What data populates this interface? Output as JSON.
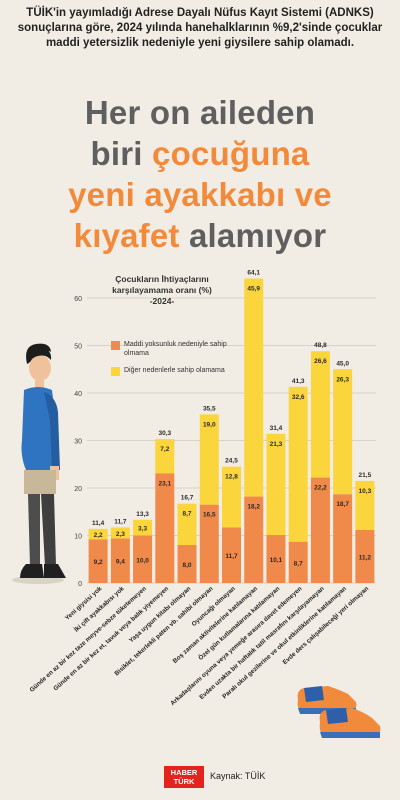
{
  "intro_text": "TÜİK'in yayımladığı Adrese Dayalı Nüfus Kayıt Sistemi (ADNKS) sonuçlarına göre, 2024 yılında hanehalklarının %9,2'sinde çocuklar maddi yetersizlik nedeniyle yeni giysilere sahip olamadı.",
  "headline": {
    "line1": "Her on aileden",
    "line2a": "biri ",
    "line2b": "çocuğuna",
    "line3": "yeni ayakkabı ve",
    "line4a": "kıyafet",
    "line4b": " alamıyor"
  },
  "legend": {
    "title": "Çocukların İhtiyaçlarını karşılayamama oranı (%) -2024-",
    "item1": "Maddi yoksunluk nedeniyle sahip olmama",
    "item2": "Diğer nedenlerle sahip olamama"
  },
  "colors": {
    "maddi": "#f08a4b",
    "diger": "#fbd53c",
    "headline_accent": "#f28a3c",
    "headline_gray": "#5f5f5f",
    "background": "#f1ede4"
  },
  "chart_data": {
    "type": "bar",
    "stacked": true,
    "ylim": [
      0,
      60
    ],
    "yticks": [
      0,
      10,
      20,
      30,
      40,
      50,
      60
    ],
    "grid": true,
    "categories": [
      "Yeni giysisi yok",
      "İki çift ayakkabısı yok",
      "Günde en az bir kez taze meyve-sebze tüketemeyen",
      "Günde en az bir kez et, tavuk veya balık yiyemeyen",
      "Yaşa uygun kitabı olmayan",
      "Bisiklet, tekerlekli paten vb. sahibi olmayan",
      "Oyuncağı olmayan",
      "Boş zaman aktivitelerine katılamayan",
      "Özel gün kutlamalarına katılamayan",
      "Arkadaşlarını oyuna veya yemeğe arasıra davet edemeyen",
      "Evden uzakta bir haftalık tatil masrafını karşılayamayan",
      "Paralı okul gezilerine ve okul etkinliklerine katılamayan",
      "Evde ders çalışabileceği yeri olmayan"
    ],
    "totals": [
      "11,4",
      "11,7",
      "13,3",
      "30,3",
      "16,7",
      "35,5",
      "24,5",
      "64,1",
      "31,4",
      "41,3",
      "48,8",
      "45,0",
      "21,5"
    ],
    "series": [
      {
        "name": "Maddi yoksunluk nedeniyle sahip olmama",
        "values": [
          9.2,
          9.4,
          10.0,
          23.1,
          8.0,
          16.5,
          11.7,
          18.2,
          10.1,
          8.7,
          22.2,
          18.7,
          11.2
        ],
        "labels": [
          "9,2",
          "9,4",
          "10,0",
          "23,1",
          "8,0",
          "16,5",
          "11,7",
          "18,2",
          "10,1",
          "8,7",
          "22,2",
          "18,7",
          "11,2"
        ]
      },
      {
        "name": "Diğer nedenlerle sahip olamama",
        "values": [
          2.2,
          2.3,
          3.3,
          7.2,
          8.7,
          19.0,
          12.8,
          45.9,
          21.3,
          32.6,
          26.6,
          26.3,
          10.3
        ],
        "labels": [
          "2,2",
          "2,3",
          "3,3",
          "7,2",
          "8,7",
          "19,0",
          "12,8",
          "45,9",
          "21,3",
          "32,6",
          "26,6",
          "26,3",
          "10,3"
        ]
      }
    ]
  },
  "footer": {
    "logo_line1": "HABER",
    "logo_line2": "TÜRK",
    "source": "Kaynak: TÜİK"
  }
}
